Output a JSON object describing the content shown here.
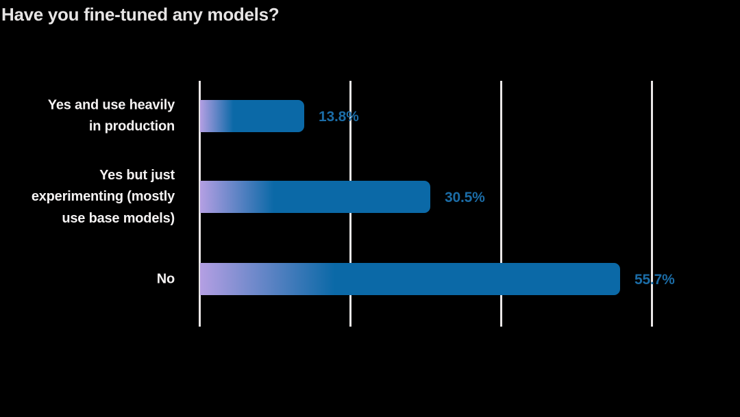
{
  "title": "Have you fine-tuned any models?",
  "chart_data": {
    "type": "bar",
    "orientation": "horizontal",
    "title": "Have you fine-tuned any models?",
    "categories": [
      "Yes and use heavily in production",
      "Yes but just experimenting (mostly use base models)",
      "No"
    ],
    "category_display_lines": [
      [
        "Yes and use heavily",
        "in production"
      ],
      [
        "Yes but just",
        "experimenting (mostly",
        "use base models)"
      ],
      [
        "No"
      ]
    ],
    "values": [
      13.8,
      30.5,
      55.7
    ],
    "value_labels": [
      "13.8%",
      "30.5%",
      "55.7%"
    ],
    "xlim": [
      0,
      60
    ],
    "gridline_values": [
      0,
      20,
      40,
      60
    ],
    "grid": true,
    "legend": false,
    "colors": {
      "background": "#000000",
      "title_text": "#e6e4e4",
      "category_text": "#f4f2f2",
      "value_text": "#1b6ca6",
      "gridline": "#eae7e7",
      "bar_gradient_start": "#b49fe3",
      "bar_gradient_end": "#0b69a7"
    }
  }
}
